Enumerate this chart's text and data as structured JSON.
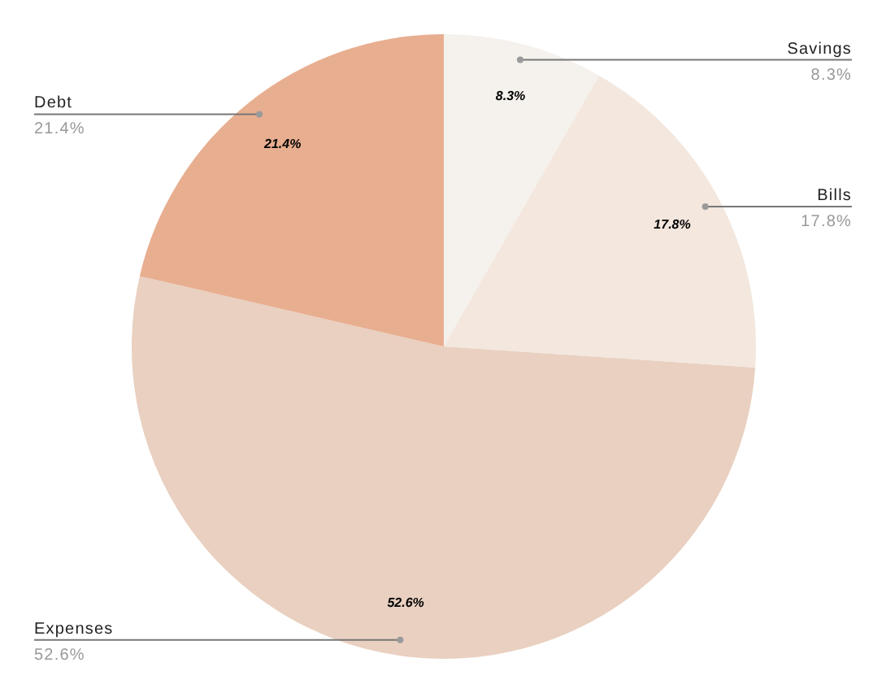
{
  "chart_data": {
    "type": "pie",
    "categories": [
      "Savings",
      "Bills",
      "Expenses",
      "Debt"
    ],
    "values": [
      8.3,
      17.8,
      52.6,
      21.4
    ],
    "value_labels": [
      "8.3%",
      "17.8%",
      "52.6%",
      "21.4%"
    ],
    "colors": [
      "#f5f1ec",
      "#f3e7de",
      "#e9d0c0",
      "#e8ae90"
    ]
  }
}
